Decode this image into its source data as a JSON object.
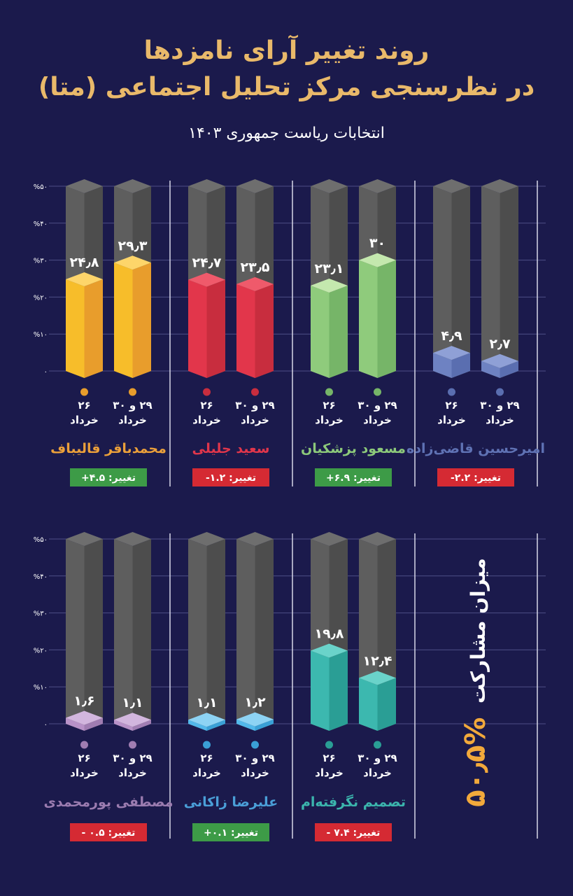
{
  "header": {
    "title_line1": "روند تغییر آرای نامزدها",
    "title_line2": "در نظرسنجی مرکز تحلیل اجتماعی (متا)",
    "subtitle": "انتخابات ریاست جمهوری ۱۴۰۳"
  },
  "turnout": {
    "label": "میزان مشارکت",
    "value": "۵۰٫۵%",
    "value_percent": 50.5
  },
  "colors": {
    "background": "#1b1a4c",
    "title": "#e9b96a",
    "bar_empty": "#5b5b5b",
    "badge_positive": "#3d9b47",
    "badge_negative": "#d52a33"
  },
  "chart_data": {
    "type": "bar",
    "ylim": [
      0,
      50
    ],
    "y_ticks": [
      0,
      10,
      20,
      30,
      40,
      50
    ],
    "y_tick_labels": [
      "۰",
      "%۱۰",
      "%۲۰",
      "%۳۰",
      "%۴۰",
      "%۵۰"
    ],
    "grid": true,
    "categories": [
      {
        "line1": "۲۶",
        "line2": "خرداد"
      },
      {
        "line1": "۲۹ و ۳۰",
        "line2": "خرداد"
      }
    ],
    "rows": [
      [
        {
          "name": "محمدباقر قالیباف",
          "values": [
            24.8,
            29.3
          ],
          "labels": [
            "۲۴٫۸",
            "۲۹٫۳"
          ],
          "change": "تغییر: ۴.۵+",
          "positive": true,
          "light": "#f7bd2a",
          "dark": "#e89d2c",
          "top": "#fdd56a",
          "text": "#eba03a"
        },
        {
          "name": "سعید جلیلی",
          "values": [
            24.7,
            23.5
          ],
          "labels": [
            "۲۴٫۷",
            "۲۳٫۵"
          ],
          "change": "تغییر: ۱.۲-",
          "positive": false,
          "light": "#e2364b",
          "dark": "#c82d3e",
          "top": "#ef5a6b",
          "text": "#e0364b"
        },
        {
          "name": "مسعود پزشکیان",
          "values": [
            23.1,
            30
          ],
          "labels": [
            "۲۳٫۱",
            "۳۰"
          ],
          "change": "تغییر: ۶.۹+",
          "positive": true,
          "light": "#8fcb7c",
          "dark": "#76b568",
          "top": "#c4e8ae",
          "text": "#8cc97a"
        },
        {
          "name": "امیرحسین قاضی‌زاده",
          "values": [
            4.9,
            2.7
          ],
          "labels": [
            "۴٫۹",
            "۲٫۷"
          ],
          "change": "تغییر: ۲.۲-",
          "positive": false,
          "light": "#6e82c2",
          "dark": "#5a6eb0",
          "top": "#8fa0d6",
          "text": "#5f72b4"
        }
      ],
      [
        {
          "name": "مصطفی پورمحمدی",
          "values": [
            1.6,
            1.1
          ],
          "labels": [
            "۱٫۶",
            "۱٫۱"
          ],
          "change": "تغییر: ۰.۵ -",
          "positive": false,
          "light": "#b892c8",
          "dark": "#a07db2",
          "top": "#d2b6de",
          "text": "#9b7cb0"
        },
        {
          "name": "علیرضا زاکانی",
          "values": [
            1.1,
            1.2
          ],
          "labels": [
            "۱٫۱",
            "۱٫۲"
          ],
          "change": "تغییر: ۰.۱+",
          "positive": true,
          "light": "#52b8ea",
          "dark": "#3aa0d6",
          "top": "#8dd3f4",
          "text": "#4a9fd8"
        },
        {
          "name": "تصمیم نگرفته‌ام",
          "values": [
            19.8,
            12.4
          ],
          "labels": [
            "۱۹٫۸",
            "۱۲٫۴"
          ],
          "change": "تغییر: ۷.۴ -",
          "positive": false,
          "light": "#3cb8af",
          "dark": "#2a9e95",
          "top": "#6ad3ca",
          "text": "#3bb5ad"
        }
      ]
    ]
  }
}
